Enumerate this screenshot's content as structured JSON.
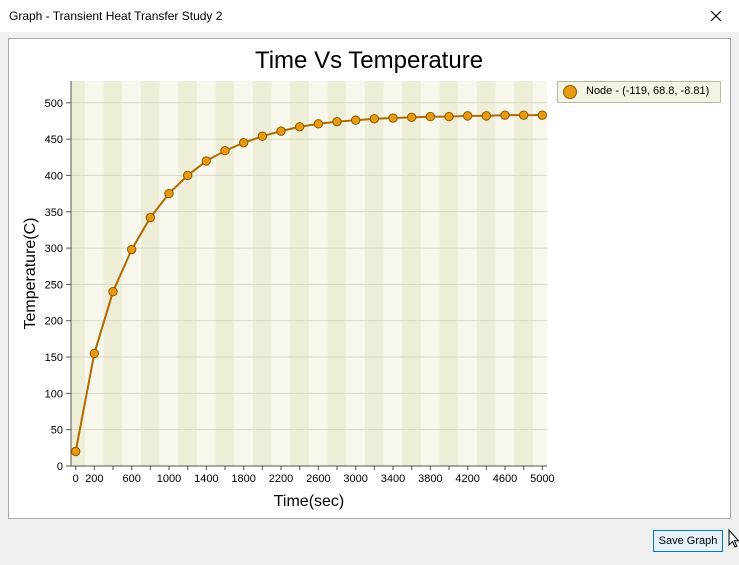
{
  "window": {
    "title": "Graph - Transient Heat Transfer Study 2",
    "close_glyph": "✕"
  },
  "buttons": {
    "save_graph": "Save Graph"
  },
  "colors": {
    "series": "#e89a10",
    "line": "#b06a00",
    "band_dark": "#ededd8",
    "band_light": "#f7f7ec"
  },
  "chart_data": {
    "type": "line",
    "title": "Time Vs Temperature",
    "xlabel": "Time(sec)",
    "ylabel": "Temperature(C)",
    "xlim": [
      -50,
      5050
    ],
    "ylim": [
      0,
      530
    ],
    "xticks": [
      0,
      200,
      600,
      1000,
      1400,
      1800,
      2200,
      2600,
      3000,
      3400,
      3800,
      4200,
      4600,
      5000
    ],
    "yticks": [
      0,
      50,
      100,
      150,
      200,
      250,
      300,
      350,
      400,
      450,
      500
    ],
    "grid": true,
    "legend_position": "right",
    "series": [
      {
        "name": "Node - (-119, 68.8, -8.81)",
        "x": [
          0,
          200,
          400,
          600,
          800,
          1000,
          1200,
          1400,
          1600,
          1800,
          2000,
          2200,
          2400,
          2600,
          2800,
          3000,
          3200,
          3400,
          3600,
          3800,
          4000,
          4200,
          4400,
          4600,
          4800,
          5000
        ],
        "y": [
          20,
          155,
          240,
          298,
          342,
          375,
          400,
          420,
          434,
          445,
          454,
          461,
          467,
          471,
          474,
          476,
          478,
          479,
          480,
          481,
          481,
          482,
          482,
          483,
          483,
          483
        ]
      }
    ]
  }
}
